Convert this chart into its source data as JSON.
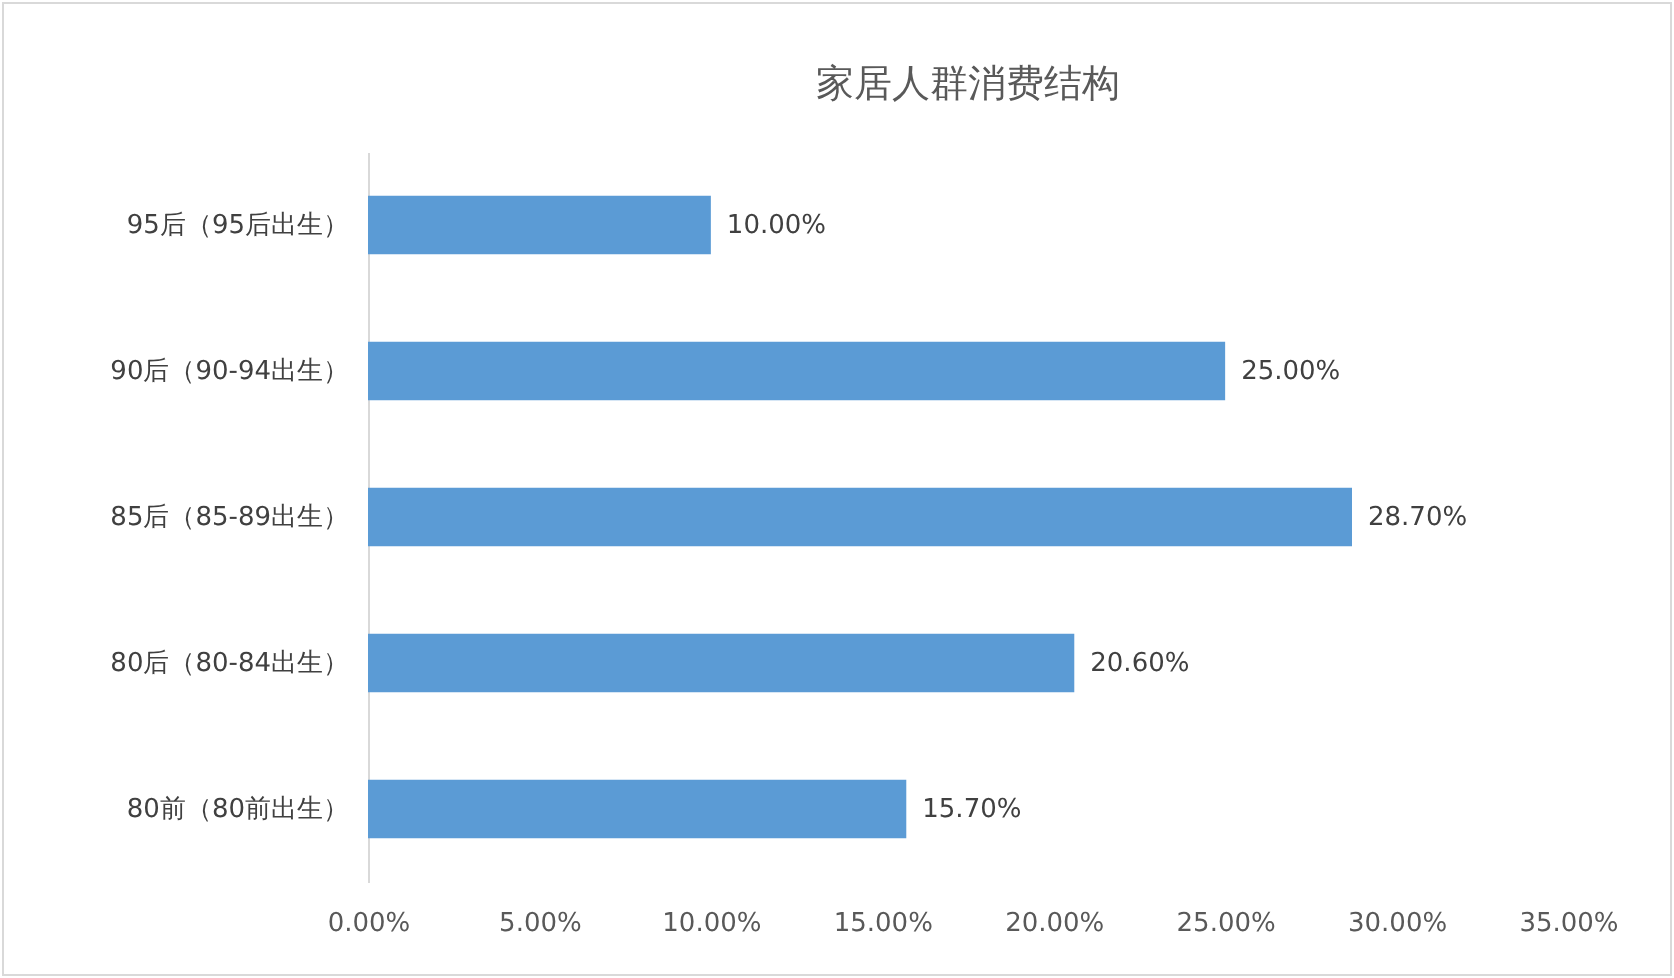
{
  "chart_data": {
    "type": "bar",
    "orientation": "horizontal",
    "title": "家居人群消费结构",
    "categories": [
      "95后（95后出生）",
      "90后（90-94出生）",
      "85后（85-89出生）",
      "80后（80-84出生）",
      "80前（80前出生）"
    ],
    "values": [
      10,
      25,
      28.7,
      20.6,
      15.7
    ],
    "value_labels": [
      "10.00%",
      "25.00%",
      "28.70%",
      "20.60%",
      "15.70%"
    ],
    "color": "#5b9bd5",
    "xlim": [
      0,
      35
    ],
    "xticks": [
      {
        "value": 0,
        "label": "0.00%"
      },
      {
        "value": 5,
        "label": "5.00%"
      },
      {
        "value": 10,
        "label": "10.00%"
      },
      {
        "value": 15,
        "label": "15.00%"
      },
      {
        "value": 20,
        "label": "20.00%"
      },
      {
        "value": 25,
        "label": "25.00%"
      },
      {
        "value": 30,
        "label": "30.00%"
      },
      {
        "value": 35,
        "label": "35.00%"
      }
    ],
    "grid": false
  }
}
